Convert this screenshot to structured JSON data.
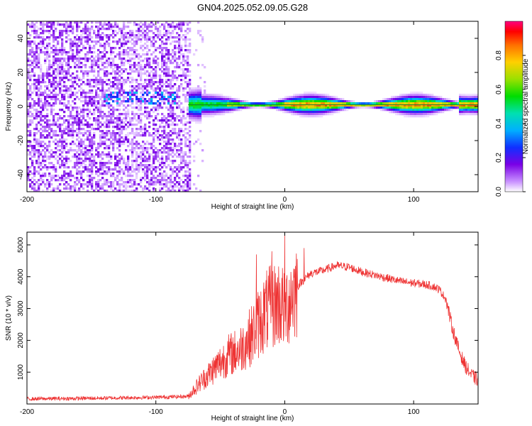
{
  "figure": {
    "title": "GN04.2025.052.09.05.G28"
  },
  "chart_data": [
    {
      "type": "heatmap",
      "xlabel": "Height of straight line (km)",
      "ylabel": "Frequency (Hz)",
      "xlim": [
        -200,
        150
      ],
      "ylim": [
        -50,
        50
      ],
      "xticks": [
        -200,
        -100,
        0,
        100
      ],
      "yticks": [
        -40,
        -20,
        0,
        20,
        40
      ],
      "colorbar": {
        "label": "Normalized spectral amplitude",
        "range": [
          0,
          1
        ],
        "ticks": [
          0.0,
          0.2,
          0.4,
          0.6,
          0.8
        ],
        "tick_labels": [
          "0.0",
          "0.2",
          "0.4",
          "0.6",
          "0.8"
        ]
      },
      "features": {
        "noise_region_x": [
          -200,
          -73
        ],
        "noise_amplitude": 0.1,
        "signal_start_x": -75,
        "signal_center_frequency": 1,
        "signal_peak_amplitude": 0.9,
        "signal_x_range": [
          -75,
          150
        ]
      }
    },
    {
      "type": "line",
      "xlabel": "Height of straight line (km)",
      "ylabel": "SNR (10 * v/v)",
      "xlim": [
        -200,
        150
      ],
      "ylim": [
        0,
        5400
      ],
      "xticks": [
        -200,
        -100,
        0,
        100
      ],
      "yticks": [
        1000,
        2000,
        3000,
        4000,
        5000
      ],
      "color": "#ee3333",
      "envelope": {
        "x": [
          -200,
          -150,
          -100,
          -75,
          -65,
          -55,
          -45,
          -35,
          -25,
          -15,
          -5,
          0,
          5,
          12,
          20,
          30,
          40,
          50,
          60,
          70,
          80,
          90,
          100,
          110,
          115,
          120,
          125,
          130,
          135,
          140,
          145,
          150
        ],
        "y": [
          160,
          180,
          210,
          240,
          700,
          1100,
          1500,
          1700,
          2200,
          2900,
          3200,
          3000,
          3400,
          3800,
          4100,
          4200,
          4350,
          4300,
          4150,
          4050,
          3950,
          3850,
          3800,
          3750,
          3700,
          3600,
          3300,
          2400,
          1700,
          1200,
          900,
          750
        ]
      },
      "spikes": [
        {
          "x": -22,
          "y": 4700
        },
        {
          "x": -10,
          "y": 4800
        },
        {
          "x": 0,
          "y": 5300
        },
        {
          "x": 15,
          "y": 4900
        }
      ]
    }
  ]
}
